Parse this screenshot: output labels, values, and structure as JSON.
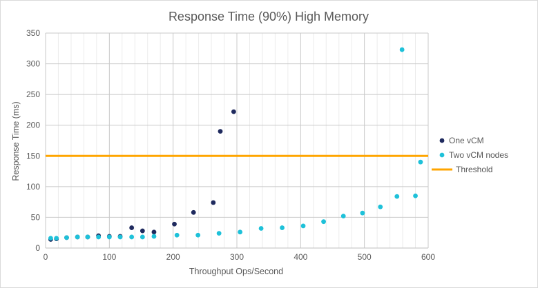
{
  "chart_data": {
    "type": "scatter",
    "title": "Response Time (90%) High Memory",
    "xlabel": "Throughput Ops/Second",
    "ylabel": "Response Time (ms)",
    "xlim": [
      0,
      600
    ],
    "ylim": [
      0,
      350
    ],
    "x_ticks": [
      "0",
      "100",
      "200",
      "300",
      "400",
      "500",
      "600"
    ],
    "y_ticks": [
      "0",
      "50",
      "100",
      "150",
      "200",
      "250",
      "300",
      "350"
    ],
    "x_minor_step": 20,
    "grid": true,
    "legend_position": "right",
    "series": [
      {
        "name": "One vCM",
        "color": "#1f2a5e",
        "marker": "circle",
        "points": [
          [
            8,
            14
          ],
          [
            17,
            15
          ],
          [
            33,
            17
          ],
          [
            50,
            18
          ],
          [
            66,
            18
          ],
          [
            83,
            20
          ],
          [
            100,
            19
          ],
          [
            117,
            19
          ],
          [
            135,
            33
          ],
          [
            152,
            28
          ],
          [
            170,
            26
          ],
          [
            202,
            39
          ],
          [
            232,
            58
          ],
          [
            263,
            74
          ],
          [
            274,
            190
          ],
          [
            295,
            222
          ]
        ]
      },
      {
        "name": "Two vCM nodes",
        "color": "#1ec1d9",
        "marker": "circle",
        "points": [
          [
            8,
            16
          ],
          [
            17,
            16
          ],
          [
            33,
            17
          ],
          [
            50,
            18
          ],
          [
            66,
            18
          ],
          [
            83,
            18
          ],
          [
            100,
            18
          ],
          [
            117,
            18
          ],
          [
            135,
            18
          ],
          [
            152,
            18
          ],
          [
            170,
            19
          ],
          [
            206,
            21
          ],
          [
            239,
            21
          ],
          [
            272,
            24
          ],
          [
            305,
            26
          ],
          [
            338,
            32
          ],
          [
            371,
            33
          ],
          [
            404,
            36
          ],
          [
            436,
            43
          ],
          [
            467,
            52
          ],
          [
            497,
            57
          ],
          [
            525,
            67
          ],
          [
            551,
            84
          ],
          [
            559,
            323
          ],
          [
            580,
            85
          ],
          [
            588,
            140
          ]
        ]
      }
    ],
    "threshold": {
      "name": "Threshold",
      "value": 150,
      "color": "#ffa500"
    }
  }
}
